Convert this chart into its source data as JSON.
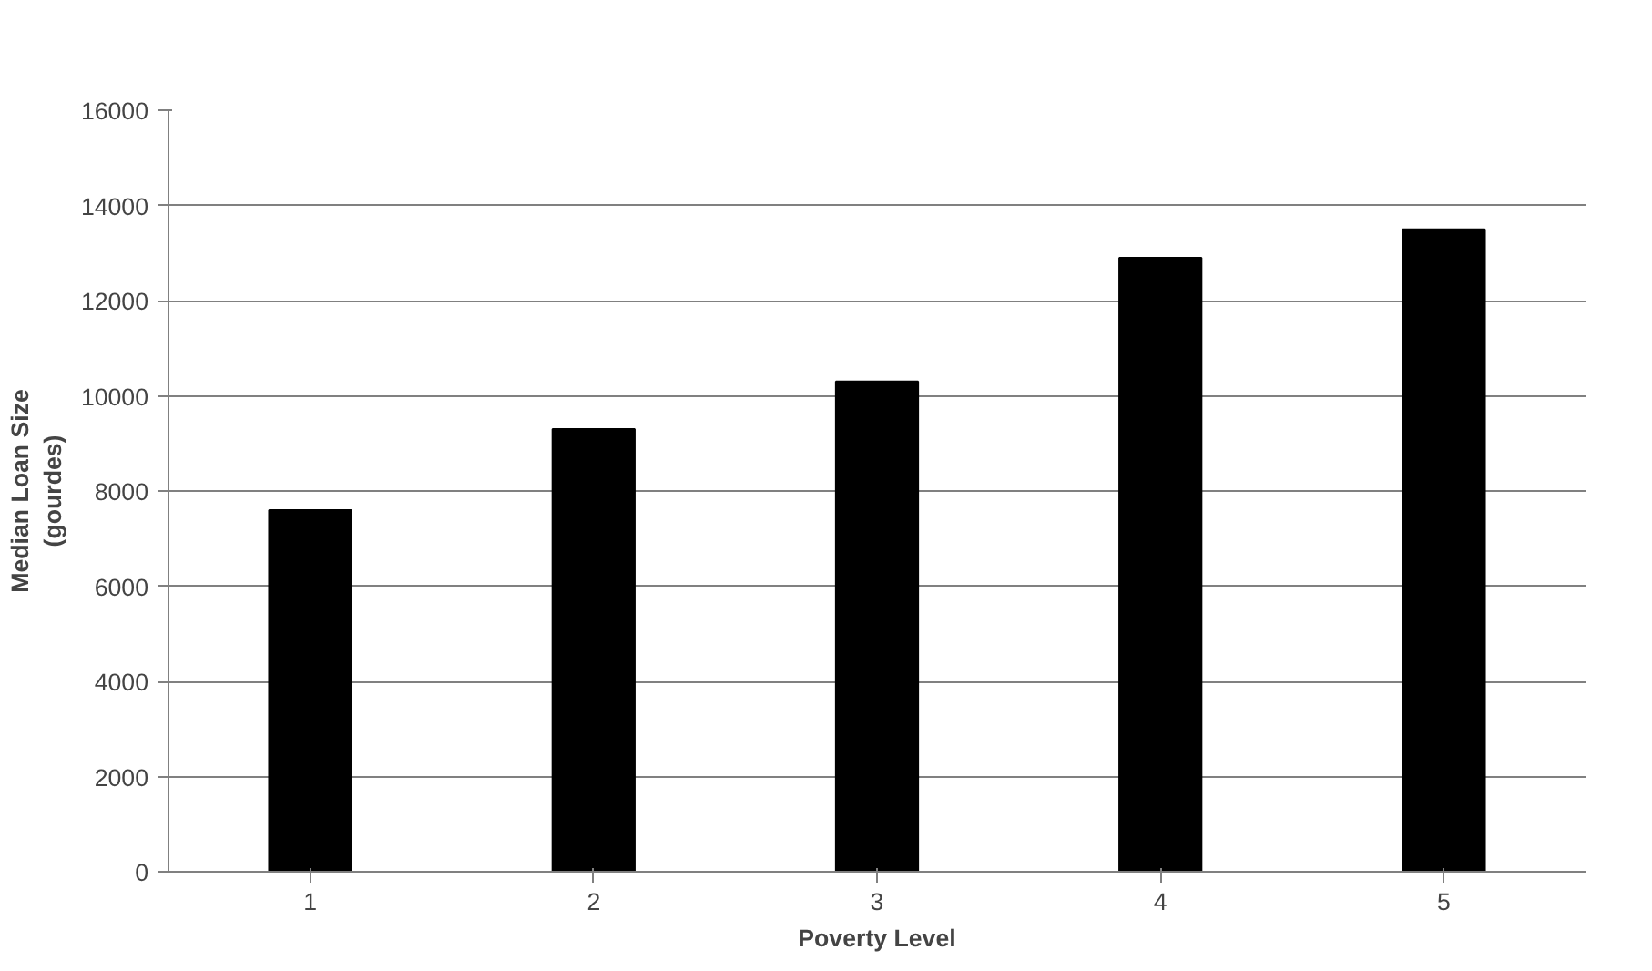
{
  "chart_data": {
    "type": "bar",
    "xlabel": "Poverty Level",
    "ylabel": "Median Loan Size\n(gourdes)",
    "categories": [
      "1",
      "2",
      "3",
      "4",
      "5"
    ],
    "values": [
      7600,
      9300,
      10300,
      12900,
      13500
    ],
    "color": "#000000",
    "ylim": [
      0,
      16000
    ],
    "yticks": [
      0,
      2000,
      4000,
      6000,
      8000,
      10000,
      12000,
      14000,
      16000
    ],
    "grid": "y"
  }
}
